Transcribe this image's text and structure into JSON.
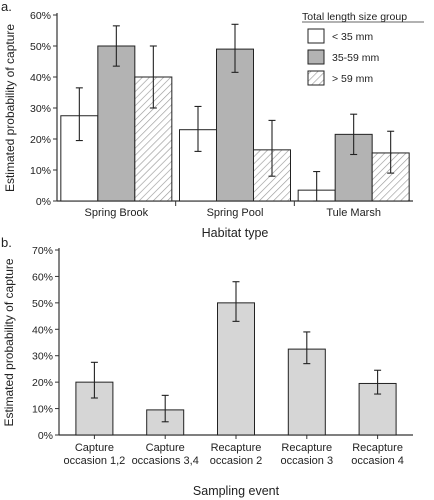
{
  "chart_data": [
    {
      "panel_label": "a.",
      "type": "bar",
      "xlabel": "Habitat type",
      "ylabel": "Estimated probability of capture",
      "ylim": [
        0,
        60
      ],
      "yticks": [
        "0%",
        "10%",
        "20%",
        "30%",
        "40%",
        "50%",
        "60%"
      ],
      "categories": [
        "Spring Brook",
        "Spring Pool",
        "Tule Marsh"
      ],
      "legend_title": "Total length size group",
      "legend_position": "top-right",
      "series": [
        {
          "name": "< 35 mm",
          "fill": "#ffffff",
          "pattern": "none",
          "values": [
            27.5,
            23,
            3.5
          ],
          "err_low": [
            19.5,
            16,
            0
          ],
          "err_high": [
            36.5,
            30.5,
            9.5
          ]
        },
        {
          "name": "35-59 mm",
          "fill": "#b3b3b3",
          "pattern": "none",
          "values": [
            50,
            49,
            21.5
          ],
          "err_low": [
            43.5,
            41.5,
            15
          ],
          "err_high": [
            56.5,
            57,
            28
          ]
        },
        {
          "name": "> 59 mm",
          "fill": "#ffffff",
          "pattern": "hatch",
          "values": [
            40,
            16.5,
            15.5
          ],
          "err_low": [
            30,
            8,
            9
          ],
          "err_high": [
            50,
            26,
            22.5
          ]
        }
      ]
    },
    {
      "panel_label": "b.",
      "type": "bar",
      "xlabel": "Sampling event",
      "ylabel": "Estimated probability of capture",
      "ylim": [
        0,
        70
      ],
      "yticks": [
        "0%",
        "10%",
        "20%",
        "30%",
        "40%",
        "50%",
        "60%",
        "70%"
      ],
      "categories": [
        [
          "Capture",
          "occasion 1,2"
        ],
        [
          "Capture",
          "occasions 3,4"
        ],
        [
          "Recapture",
          "occasion 2"
        ],
        [
          "Recapture",
          "occasion 3"
        ],
        [
          "Recapture",
          "occasion 4"
        ]
      ],
      "series": [
        {
          "fill": "#d6d6d6",
          "values": [
            20,
            9.5,
            50,
            32.5,
            19.5
          ],
          "err_low": [
            14,
            5,
            43,
            27,
            15.5
          ],
          "err_high": [
            27.5,
            15,
            58,
            39,
            24.5
          ]
        }
      ]
    }
  ]
}
